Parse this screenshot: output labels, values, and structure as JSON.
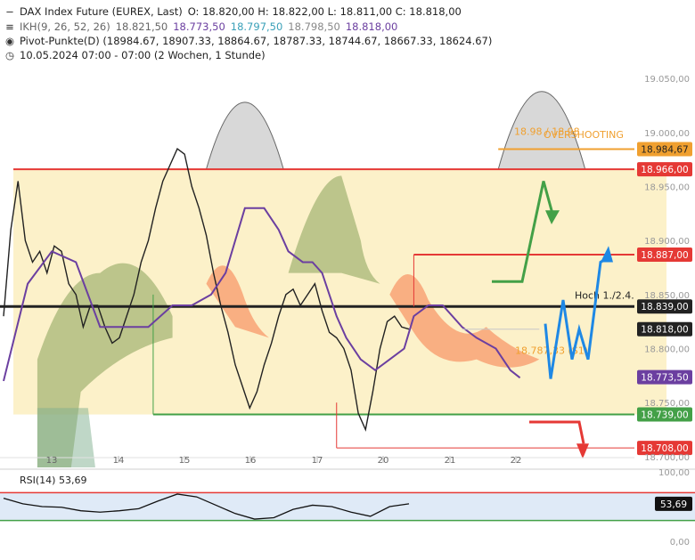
{
  "header": {
    "title": "DAX Index Future (EUREX, Last)",
    "ohlc": "O: 18.820,00  H: 18.822,00  L: 18.811,00  C: 18.818,00",
    "ikh_label": "IKH(9, 26, 52, 26)",
    "ikh_v1": "18.821,50",
    "ikh_v2": "18.773,50",
    "ikh_v3": "18.797,50",
    "ikh_v4": "18.798,50",
    "ikh_v5": "18.818,00",
    "pivot": "Pivot-Punkte(D) (18984.67, 18907.33, 18864.67, 18787.33, 18744.67, 18667.33, 18624.67)",
    "period": "10.05.2024 07:00 - 07:00  (2 Wochen, 1 Stunde)"
  },
  "colors": {
    "purple": "#6b3fa0",
    "teal": "#3aa0b8",
    "red": "#e53935",
    "green": "#43a047",
    "orange": "#f0a030",
    "blue": "#1e88e5",
    "dark": "#222222"
  },
  "chart_data": [
    {
      "type": "line",
      "ylim": [
        18690,
        19065
      ],
      "yticks": [
        "19.050,00",
        "19.000,00",
        "18.950,00",
        "18.900,00",
        "18.850,00",
        "18.800,00",
        "18.750,00",
        "18.700,00"
      ],
      "ytick_values": [
        19050,
        19000,
        18950,
        18900,
        18850,
        18800,
        18750,
        18700
      ],
      "x_labels": [
        "13",
        "14",
        "15",
        "16",
        "17",
        "20",
        "21",
        "22"
      ],
      "price_series": [
        [
          0,
          18830
        ],
        [
          3,
          18910
        ],
        [
          6,
          18955
        ],
        [
          9,
          18900
        ],
        [
          12,
          18880
        ],
        [
          15,
          18890
        ],
        [
          18,
          18870
        ],
        [
          21,
          18895
        ],
        [
          24,
          18890
        ],
        [
          27,
          18860
        ],
        [
          30,
          18850
        ],
        [
          33,
          18820
        ],
        [
          36,
          18840
        ],
        [
          39,
          18840
        ],
        [
          42,
          18820
        ],
        [
          45,
          18805
        ],
        [
          48,
          18810
        ],
        [
          51,
          18830
        ],
        [
          54,
          18850
        ],
        [
          57,
          18880
        ],
        [
          60,
          18900
        ],
        [
          63,
          18930
        ],
        [
          66,
          18955
        ],
        [
          69,
          18970
        ],
        [
          72,
          18985
        ],
        [
          75,
          18980
        ],
        [
          78,
          18950
        ],
        [
          81,
          18930
        ],
        [
          84,
          18905
        ],
        [
          87,
          18870
        ],
        [
          90,
          18840
        ],
        [
          93,
          18815
        ],
        [
          96,
          18785
        ],
        [
          99,
          18765
        ],
        [
          102,
          18745
        ],
        [
          105,
          18760
        ],
        [
          108,
          18785
        ],
        [
          111,
          18805
        ],
        [
          114,
          18830
        ],
        [
          117,
          18850
        ],
        [
          120,
          18855
        ],
        [
          123,
          18840
        ],
        [
          126,
          18850
        ],
        [
          129,
          18860
        ],
        [
          132,
          18835
        ],
        [
          135,
          18815
        ],
        [
          138,
          18810
        ],
        [
          141,
          18800
        ],
        [
          144,
          18780
        ],
        [
          147,
          18740
        ],
        [
          150,
          18725
        ],
        [
          153,
          18760
        ],
        [
          156,
          18800
        ],
        [
          159,
          18825
        ],
        [
          162,
          18830
        ],
        [
          165,
          18820
        ],
        [
          168,
          18818
        ]
      ],
      "ikh_series": {
        "tenkan": "18.821,50",
        "kijun": "18.773,50",
        "senkou_a": "18.797,50",
        "senkou_b": "18.798,50",
        "chikou": "18.818,00"
      },
      "horizontal_levels": [
        {
          "value": 18984.67,
          "label": "18.984,67",
          "color": "#f0a030"
        },
        {
          "value": 18966,
          "label": "18.966,00",
          "color": "#e53935"
        },
        {
          "value": 18887,
          "label": "18.887,00",
          "color": "#e53935"
        },
        {
          "value": 18839,
          "label": "18.839,00",
          "color": "#222222"
        },
        {
          "value": 18818,
          "label": "18.818,00",
          "color": "#222222"
        },
        {
          "value": 18773.5,
          "label": "18.773,50",
          "color": "#6b3fa0"
        },
        {
          "value": 18739,
          "label": "18.739,00",
          "color": "#43a047"
        },
        {
          "value": 18708,
          "label": "18.708,00",
          "color": "#e53935"
        }
      ],
      "annotations": {
        "overshooting": "OVERSHOOTING",
        "pivot_top": "18.98 / 18.98",
        "hoch": "Hoch 1./2.4.",
        "pivot_mid": "18.787,33 (S1)"
      }
    },
    {
      "type": "line",
      "title": "RSI(14)",
      "value_label": "53,69",
      "ylim": [
        0,
        100
      ],
      "yticks": [
        "100,00",
        "0,00"
      ],
      "levels": [
        70,
        30
      ],
      "series": [
        [
          0,
          62
        ],
        [
          8,
          54
        ],
        [
          16,
          50
        ],
        [
          24,
          49
        ],
        [
          32,
          44
        ],
        [
          40,
          42
        ],
        [
          48,
          44
        ],
        [
          56,
          47
        ],
        [
          64,
          58
        ],
        [
          72,
          68
        ],
        [
          80,
          64
        ],
        [
          88,
          52
        ],
        [
          96,
          40
        ],
        [
          104,
          32
        ],
        [
          112,
          34
        ],
        [
          120,
          46
        ],
        [
          128,
          52
        ],
        [
          136,
          50
        ],
        [
          144,
          42
        ],
        [
          152,
          36
        ],
        [
          160,
          50
        ],
        [
          168,
          54
        ]
      ]
    }
  ]
}
